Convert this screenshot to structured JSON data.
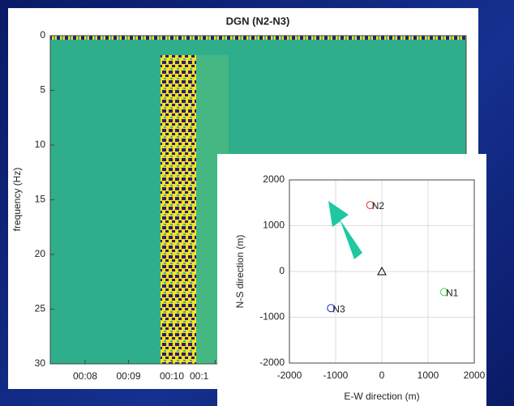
{
  "chart_data": [
    {
      "type": "heatmap",
      "title": "DGN (N2-N3)",
      "ylabel": "frequency (Hz)",
      "ylim": [
        0,
        30
      ],
      "yticks": [
        0,
        5,
        10,
        15,
        20,
        25,
        30
      ],
      "y_reversed": true,
      "xtick_labels": [
        "00:08",
        "00:09",
        "00:10",
        "00:1"
      ]
    },
    {
      "type": "scatter",
      "xlabel": "E-W direction (m)",
      "ylabel": "N-S direction (m)",
      "xlim": [
        -2000,
        2000
      ],
      "ylim": [
        -2000,
        2000
      ],
      "xticks": [
        -2000,
        -1000,
        0,
        1000,
        2000
      ],
      "yticks": [
        -2000,
        -1000,
        0,
        1000,
        2000
      ],
      "grid": true,
      "points": [
        {
          "label": "N1",
          "x": 1350,
          "y": -450,
          "color": "#33dd33",
          "marker": "circle"
        },
        {
          "label": "N2",
          "x": -250,
          "y": 1450,
          "color": "#e03030",
          "marker": "circle"
        },
        {
          "label": "N3",
          "x": -1100,
          "y": -800,
          "color": "#2020dd",
          "marker": "circle"
        },
        {
          "x": 0,
          "y": 0,
          "color": "#000000",
          "marker": "triangle"
        }
      ]
    }
  ]
}
